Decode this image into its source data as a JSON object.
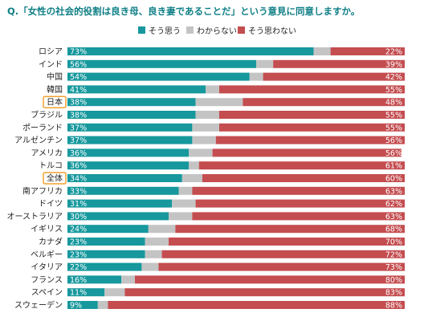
{
  "title": "Q.「女性の社会的役割は良き母、良き妻であることだ」という意見に同意しますか。",
  "colors": {
    "agree": "#16989d",
    "unknown": "#c4c4c4",
    "disagree": "#c44d50",
    "highlight": "#f0a030"
  },
  "chart_data": {
    "type": "bar",
    "stacked": true,
    "orientation": "horizontal",
    "categories": [
      "ロシア",
      "インド",
      "中国",
      "韓国",
      "日本",
      "ブラジル",
      "ポーランド",
      "アルゼンチン",
      "アメリカ",
      "トルコ",
      "全体",
      "南アフリカ",
      "ドイツ",
      "オーストラリア",
      "イギリス",
      "カナダ",
      "ベルギー",
      "イタリア",
      "フランス",
      "スペイン",
      "スウェーデン"
    ],
    "highlighted": [
      "日本",
      "全体"
    ],
    "series": [
      {
        "name": "そう思う",
        "values": [
          73,
          56,
          54,
          41,
          38,
          38,
          37,
          37,
          36,
          36,
          34,
          33,
          31,
          30,
          24,
          23,
          23,
          22,
          16,
          11,
          9
        ],
        "labels": [
          "73%",
          "56%",
          "54%",
          "41%",
          "38%",
          "38%",
          "37%",
          "37%",
          "36%",
          "36%",
          "34%",
          "33%",
          "31%",
          "30%",
          "24%",
          "23%",
          "23%",
          "22%",
          "16%",
          "11%",
          "9%"
        ]
      },
      {
        "name": "わからない",
        "values": [
          5,
          5,
          4,
          4,
          14,
          7,
          8,
          7,
          7,
          3,
          6,
          4,
          7,
          7,
          8,
          7,
          5,
          5,
          4,
          6,
          3
        ]
      },
      {
        "name": "そう思わない",
        "values": [
          22,
          39,
          42,
          55,
          48,
          55,
          55,
          56,
          56,
          61,
          60,
          63,
          62,
          63,
          68,
          70,
          72,
          73,
          80,
          83,
          88
        ],
        "labels": [
          "22%",
          "39%",
          "42%",
          "55%",
          "48%",
          "55%",
          "55%",
          "56%",
          "56%",
          "61%",
          "60%",
          "63%",
          "62%",
          "63%",
          "68%",
          "70%",
          "72%",
          "73%",
          "80%",
          "83%",
          "88%"
        ]
      }
    ],
    "xlim": [
      0,
      100
    ],
    "legend_position": "top"
  }
}
